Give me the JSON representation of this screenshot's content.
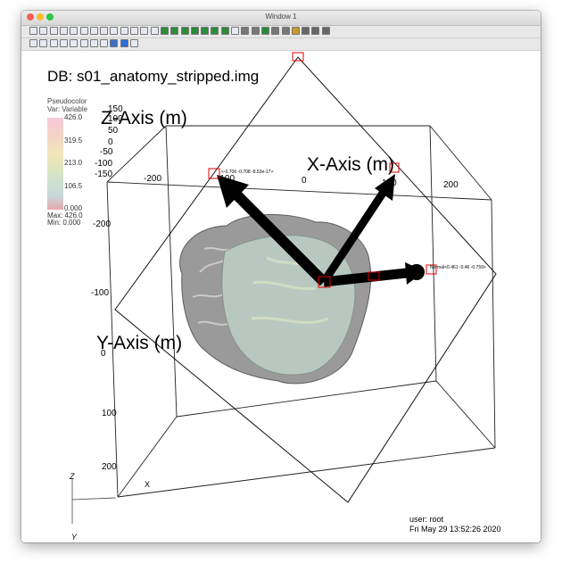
{
  "window": {
    "title": "Window 1"
  },
  "toolbar_row1_icons": [
    "new-window-icon",
    "open-file-icon",
    "save-icon",
    "print-icon",
    "reload-icon",
    "toggle-icon",
    "grid-icon",
    "table-icon",
    "sliders-icon",
    "plot-icon",
    "tree-icon",
    "dataset-icon",
    "chart-icon",
    "green-block-icon",
    "green-block-icon",
    "green-block-icon",
    "green-block-icon",
    "green-block-icon",
    "green-block-icon",
    "green-block-icon",
    "animation-icon",
    "prev-frame-icon",
    "step-back-icon",
    "play-icon",
    "step-forward-icon",
    "next-frame-icon",
    "settings-icon",
    "music-icon",
    "music-icon",
    "music-icon"
  ],
  "toolbar_row2_icons": [
    "navigate-icon",
    "zoom-icon",
    "pick-icon",
    "pick-icon",
    "pick-icon",
    "pick-icon",
    "lineout-icon",
    "pencil-icon",
    "cube-icon",
    "sphere-icon",
    "ruler-icon"
  ],
  "viewport": {
    "db_label": "DB: s01_anatomy_stripped.img",
    "legend": {
      "title": "Pseudocolor",
      "var": "Var: Variable",
      "ticks": [
        "426.0",
        "319.5",
        "213.0",
        "106.5",
        "0.000"
      ],
      "max": "Max:  426.0",
      "min": "Min:  0.000"
    },
    "axes": {
      "z_title": "Z-Axis (m)",
      "x_title": "X-Axis (m)",
      "y_title": "Y-Axis (m)",
      "z_ticks": [
        "150",
        "100",
        "50",
        "0",
        "-50",
        "-100",
        "-150",
        "-200"
      ],
      "x_ticks": [
        "-200",
        "-100",
        "0",
        "100",
        "200"
      ],
      "y_ticks": [
        "-100",
        "0",
        "100",
        "200"
      ]
    },
    "plane_labels": {
      "origin_label": "<-0.706 -0.708 -8.53e-17>",
      "normal_label": "Normal<0.461 -0.46 -0.759>"
    },
    "triad": {
      "z": "Z",
      "x": "X",
      "y": "Y"
    },
    "user_label": "user: root",
    "timestamp": "Fri May 29 13:52:26 2020"
  },
  "colors": {
    "brain_slice": "#b8c8c0",
    "brain_surface": "#8e8e8e",
    "legend_top": "#f7c9d9",
    "legend_bottom": "#e8a7ad"
  }
}
